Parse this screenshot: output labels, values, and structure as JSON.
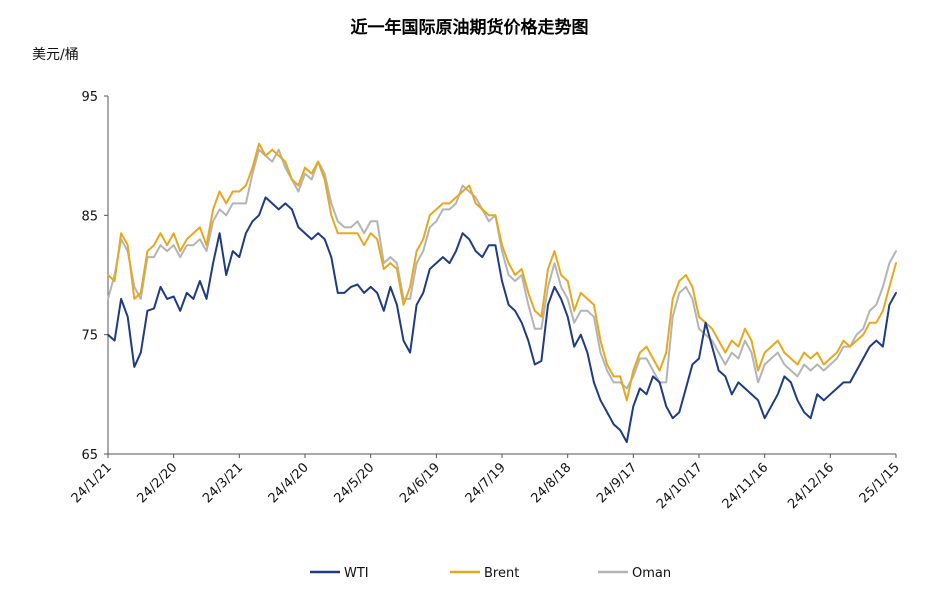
{
  "chart_data": {
    "type": "line",
    "title": "近一年国际原油期货价格走势图",
    "ylabel": "美元/桶",
    "xlabel": "",
    "ylim": [
      65,
      95
    ],
    "yticks": [
      65,
      75,
      85,
      95
    ],
    "grid": false,
    "legend_position": "bottom-center",
    "xticks": [
      "24/1/21",
      "24/2/20",
      "24/3/21",
      "24/4/20",
      "24/5/20",
      "24/6/19",
      "24/7/19",
      "24/8/18",
      "24/9/17",
      "24/10/17",
      "24/11/16",
      "24/12/16",
      "25/1/15"
    ],
    "x_start": "24/1/21",
    "x_end": "25/1/15",
    "series": [
      {
        "name": "WTI",
        "color": "#1f3b82",
        "x": [
          "24/1/21",
          "24/1/24",
          "24/1/27",
          "24/1/30",
          "24/2/2",
          "24/2/5",
          "24/2/8",
          "24/2/11",
          "24/2/14",
          "24/2/17",
          "24/2/20",
          "24/2/23",
          "24/2/26",
          "24/2/29",
          "24/3/3",
          "24/3/6",
          "24/3/9",
          "24/3/12",
          "24/3/15",
          "24/3/18",
          "24/3/21",
          "24/3/24",
          "24/3/27",
          "24/3/30",
          "24/4/2",
          "24/4/5",
          "24/4/8",
          "24/4/11",
          "24/4/14",
          "24/4/17",
          "24/4/20",
          "24/4/23",
          "24/4/26",
          "24/4/29",
          "24/5/2",
          "24/5/5",
          "24/5/8",
          "24/5/11",
          "24/5/14",
          "24/5/17",
          "24/5/20",
          "24/5/23",
          "24/5/26",
          "24/5/29",
          "24/6/1",
          "24/6/4",
          "24/6/7",
          "24/6/10",
          "24/6/13",
          "24/6/16",
          "24/6/19",
          "24/6/22",
          "24/6/25",
          "24/6/28",
          "24/7/1",
          "24/7/4",
          "24/7/7",
          "24/7/10",
          "24/7/13",
          "24/7/16",
          "24/7/19",
          "24/7/22",
          "24/7/25",
          "24/7/28",
          "24/7/31",
          "24/8/3",
          "24/8/6",
          "24/8/9",
          "24/8/12",
          "24/8/15",
          "24/8/18",
          "24/8/21",
          "24/8/24",
          "24/8/27",
          "24/8/30",
          "24/9/2",
          "24/9/5",
          "24/9/8",
          "24/9/11",
          "24/9/14",
          "24/9/17",
          "24/9/20",
          "24/9/23",
          "24/9/26",
          "24/9/29",
          "24/10/2",
          "24/10/5",
          "24/10/8",
          "24/10/11",
          "24/10/14",
          "24/10/17",
          "24/10/20",
          "24/10/23",
          "24/10/26",
          "24/10/29",
          "24/11/1",
          "24/11/4",
          "24/11/7",
          "24/11/10",
          "24/11/13",
          "24/11/16",
          "24/11/19",
          "24/11/22",
          "24/11/25",
          "24/11/28",
          "24/12/1",
          "24/12/4",
          "24/12/7",
          "24/12/10",
          "24/12/13",
          "24/12/16",
          "24/12/19",
          "24/12/22",
          "24/12/25",
          "24/12/28",
          "24/12/31",
          "25/1/3",
          "25/1/6",
          "25/1/9",
          "25/1/12",
          "25/1/15"
        ],
        "values": [
          75.0,
          74.5,
          78.0,
          76.5,
          72.3,
          73.5,
          77.0,
          77.2,
          79.0,
          78.0,
          78.2,
          77.0,
          78.5,
          78.0,
          79.5,
          78.0,
          81.0,
          83.5,
          80.0,
          82.0,
          81.5,
          83.5,
          84.5,
          85.0,
          86.5,
          86.0,
          85.5,
          86.0,
          85.5,
          84.0,
          83.5,
          83.0,
          83.5,
          83.0,
          81.5,
          78.5,
          78.5,
          79.0,
          79.2,
          78.5,
          79.0,
          78.5,
          77.0,
          79.0,
          77.5,
          74.5,
          73.5,
          77.5,
          78.5,
          80.5,
          81.0,
          81.5,
          81.0,
          82.0,
          83.5,
          83.0,
          82.0,
          81.5,
          82.5,
          82.5,
          79.5,
          77.5,
          77.0,
          76.0,
          74.5,
          72.5,
          72.8,
          77.5,
          79.0,
          78.0,
          76.5,
          74.0,
          75.0,
          73.5,
          71.0,
          69.5,
          68.5,
          67.5,
          67.0,
          66.0,
          69.0,
          70.5,
          70.0,
          71.5,
          71.0,
          69.0,
          68.0,
          68.5,
          70.5,
          72.5,
          73.0,
          76.0,
          74.0,
          72.0,
          71.5,
          70.0,
          71.0,
          70.5,
          70.0,
          69.5,
          68.0,
          69.0,
          70.0,
          71.5,
          71.0,
          69.5,
          68.5,
          68.0,
          70.0,
          69.5,
          70.0,
          70.5,
          71.0,
          71.0,
          72.0,
          73.0,
          74.0,
          74.5,
          74.0,
          77.5,
          78.5
        ]
      },
      {
        "name": "Brent",
        "color": "#e6a81f",
        "x": [
          "24/1/21",
          "24/1/24",
          "24/1/27",
          "24/1/30",
          "24/2/2",
          "24/2/5",
          "24/2/8",
          "24/2/11",
          "24/2/14",
          "24/2/17",
          "24/2/20",
          "24/2/23",
          "24/2/26",
          "24/2/29",
          "24/3/3",
          "24/3/6",
          "24/3/9",
          "24/3/12",
          "24/3/15",
          "24/3/18",
          "24/3/21",
          "24/3/24",
          "24/3/27",
          "24/3/30",
          "24/4/2",
          "24/4/5",
          "24/4/8",
          "24/4/11",
          "24/4/14",
          "24/4/17",
          "24/4/20",
          "24/4/23",
          "24/4/26",
          "24/4/29",
          "24/5/2",
          "24/5/5",
          "24/5/8",
          "24/5/11",
          "24/5/14",
          "24/5/17",
          "24/5/20",
          "24/5/23",
          "24/5/26",
          "24/5/29",
          "24/6/1",
          "24/6/4",
          "24/6/7",
          "24/6/10",
          "24/6/13",
          "24/6/16",
          "24/6/19",
          "24/6/22",
          "24/6/25",
          "24/6/28",
          "24/7/1",
          "24/7/4",
          "24/7/7",
          "24/7/10",
          "24/7/13",
          "24/7/16",
          "24/7/19",
          "24/7/22",
          "24/7/25",
          "24/7/28",
          "24/7/31",
          "24/8/3",
          "24/8/6",
          "24/8/9",
          "24/8/12",
          "24/8/15",
          "24/8/18",
          "24/8/21",
          "24/8/24",
          "24/8/27",
          "24/8/30",
          "24/9/2",
          "24/9/5",
          "24/9/8",
          "24/9/11",
          "24/9/14",
          "24/9/17",
          "24/9/20",
          "24/9/23",
          "24/9/26",
          "24/9/29",
          "24/10/2",
          "24/10/5",
          "24/10/8",
          "24/10/11",
          "24/10/14",
          "24/10/17",
          "24/10/20",
          "24/10/23",
          "24/10/26",
          "24/10/29",
          "24/11/1",
          "24/11/4",
          "24/11/7",
          "24/11/10",
          "24/11/13",
          "24/11/16",
          "24/11/19",
          "24/11/22",
          "24/11/25",
          "24/11/28",
          "24/12/1",
          "24/12/4",
          "24/12/7",
          "24/12/10",
          "24/12/13",
          "24/12/16",
          "24/12/19",
          "24/12/22",
          "24/12/25",
          "24/12/28",
          "24/12/31",
          "25/1/3",
          "25/1/6",
          "25/1/9",
          "25/1/12",
          "25/1/15"
        ],
        "values": [
          80.0,
          79.5,
          83.5,
          82.5,
          78.0,
          78.5,
          82.0,
          82.5,
          83.5,
          82.5,
          83.5,
          82.0,
          83.0,
          83.5,
          84.0,
          82.5,
          85.5,
          87.0,
          86.0,
          87.0,
          87.0,
          87.5,
          89.0,
          91.0,
          90.0,
          90.5,
          90.0,
          89.5,
          88.0,
          87.5,
          89.0,
          88.5,
          89.5,
          88.0,
          85.0,
          83.5,
          83.5,
          83.5,
          83.5,
          82.5,
          83.5,
          83.0,
          80.5,
          81.0,
          80.5,
          77.5,
          79.0,
          82.0,
          83.0,
          85.0,
          85.5,
          86.0,
          86.0,
          86.5,
          87.0,
          87.5,
          86.0,
          85.5,
          85.0,
          85.0,
          82.5,
          81.0,
          80.0,
          80.5,
          78.5,
          77.0,
          76.5,
          80.5,
          82.0,
          80.0,
          79.5,
          77.0,
          78.5,
          78.0,
          77.5,
          74.5,
          72.5,
          71.5,
          71.5,
          69.5,
          72.0,
          73.5,
          74.0,
          73.0,
          72.0,
          73.5,
          78.0,
          79.5,
          80.0,
          79.0,
          76.5,
          76.0,
          75.5,
          74.5,
          73.5,
          74.5,
          74.0,
          75.5,
          74.5,
          72.0,
          73.5,
          74.0,
          74.5,
          73.5,
          73.0,
          72.5,
          73.5,
          73.0,
          73.5,
          72.5,
          73.0,
          73.5,
          74.5,
          74.0,
          74.5,
          75.0,
          76.0,
          76.0,
          77.0,
          79.0,
          81.0
        ]
      },
      {
        "name": "Oman",
        "color": "#b4b4b4",
        "x": [
          "24/1/21",
          "24/1/24",
          "24/1/27",
          "24/1/30",
          "24/2/2",
          "24/2/5",
          "24/2/8",
          "24/2/11",
          "24/2/14",
          "24/2/17",
          "24/2/20",
          "24/2/23",
          "24/2/26",
          "24/2/29",
          "24/3/3",
          "24/3/6",
          "24/3/9",
          "24/3/12",
          "24/3/15",
          "24/3/18",
          "24/3/21",
          "24/3/24",
          "24/3/27",
          "24/3/30",
          "24/4/2",
          "24/4/5",
          "24/4/8",
          "24/4/11",
          "24/4/14",
          "24/4/17",
          "24/4/20",
          "24/4/23",
          "24/4/26",
          "24/4/29",
          "24/5/2",
          "24/5/5",
          "24/5/8",
          "24/5/11",
          "24/5/14",
          "24/5/17",
          "24/5/20",
          "24/5/23",
          "24/5/26",
          "24/5/29",
          "24/6/1",
          "24/6/4",
          "24/6/7",
          "24/6/10",
          "24/6/13",
          "24/6/16",
          "24/6/19",
          "24/6/22",
          "24/6/25",
          "24/6/28",
          "24/7/1",
          "24/7/4",
          "24/7/7",
          "24/7/10",
          "24/7/13",
          "24/7/16",
          "24/7/19",
          "24/7/22",
          "24/7/25",
          "24/7/28",
          "24/7/31",
          "24/8/3",
          "24/8/6",
          "24/8/9",
          "24/8/12",
          "24/8/15",
          "24/8/18",
          "24/8/21",
          "24/8/24",
          "24/8/27",
          "24/8/30",
          "24/9/2",
          "24/9/5",
          "24/9/8",
          "24/9/11",
          "24/9/14",
          "24/9/17",
          "24/9/20",
          "24/9/23",
          "24/9/26",
          "24/9/29",
          "24/10/2",
          "24/10/5",
          "24/10/8",
          "24/10/11",
          "24/10/14",
          "24/10/17",
          "24/10/20",
          "24/10/23",
          "24/10/26",
          "24/10/29",
          "24/11/1",
          "24/11/4",
          "24/11/7",
          "24/11/10",
          "24/11/13",
          "24/11/16",
          "24/11/19",
          "24/11/22",
          "24/11/25",
          "24/11/28",
          "24/12/1",
          "24/12/4",
          "24/12/7",
          "24/12/10",
          "24/12/13",
          "24/12/16",
          "24/12/19",
          "24/12/22",
          "24/12/25",
          "24/12/28",
          "24/12/31",
          "25/1/3",
          "25/1/6",
          "25/1/9",
          "25/1/12",
          "25/1/15"
        ],
        "values": [
          78.0,
          80.0,
          83.0,
          82.0,
          79.0,
          78.0,
          81.5,
          81.5,
          82.5,
          82.0,
          82.5,
          81.5,
          82.5,
          82.5,
          83.0,
          82.0,
          84.5,
          85.5,
          85.0,
          86.0,
          86.0,
          86.0,
          88.5,
          90.5,
          90.0,
          89.5,
          90.5,
          89.0,
          88.0,
          87.0,
          88.5,
          88.0,
          89.5,
          88.5,
          86.0,
          84.5,
          84.0,
          84.0,
          84.5,
          83.5,
          84.5,
          84.5,
          81.0,
          81.5,
          81.0,
          78.0,
          78.0,
          81.0,
          82.0,
          84.0,
          84.5,
          85.5,
          85.5,
          86.0,
          87.5,
          87.0,
          86.5,
          85.5,
          84.5,
          85.0,
          82.0,
          80.0,
          79.5,
          80.0,
          77.5,
          75.5,
          75.5,
          79.0,
          81.0,
          79.0,
          78.0,
          76.0,
          77.0,
          77.0,
          76.5,
          73.5,
          72.0,
          71.0,
          71.0,
          70.5,
          71.5,
          73.0,
          73.0,
          72.0,
          71.0,
          71.0,
          76.5,
          78.5,
          79.0,
          78.0,
          75.5,
          75.0,
          74.5,
          73.5,
          72.5,
          73.5,
          73.0,
          74.5,
          73.5,
          71.0,
          72.5,
          73.0,
          73.5,
          72.5,
          72.0,
          71.5,
          72.5,
          72.0,
          72.5,
          72.0,
          72.5,
          73.0,
          74.0,
          74.0,
          75.0,
          75.5,
          77.0,
          77.5,
          79.0,
          81.0,
          82.0
        ]
      }
    ]
  }
}
